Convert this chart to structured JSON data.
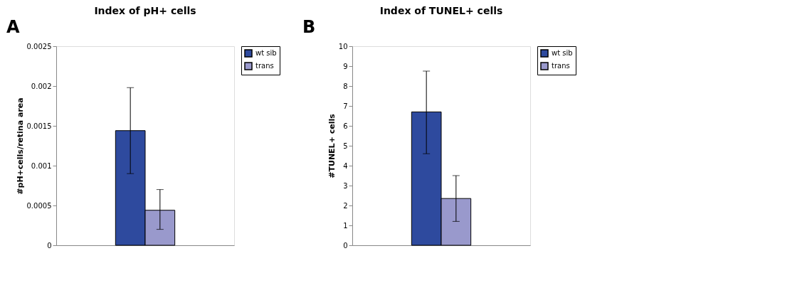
{
  "chart_data": [
    {
      "type": "bar",
      "title": "Index of pH+ cells",
      "ylabel": "#pH+cells/retina area",
      "annotations": [
        "A"
      ],
      "categories": [
        null
      ],
      "ylim": [
        0,
        0.0025
      ],
      "yticks": [
        0,
        0.0005,
        0.001,
        0.0015,
        0.002,
        0.0025
      ],
      "legend": "right",
      "tick_labels": "y",
      "grid": false,
      "series": [
        {
          "name": "wt sib",
          "color": "#2e4a9e",
          "values": [
            0.00144
          ],
          "errors": [
            [
              0.0009,
              0.00198
            ]
          ]
        },
        {
          "name": "trans",
          "color": "#9999cc",
          "values": [
            0.00044
          ],
          "errors": [
            [
              0.0002,
              0.0007
            ]
          ]
        }
      ]
    },
    {
      "type": "bar",
      "title": "Index of TUNEL+ cells",
      "ylabel": "#TUNEL+ cells",
      "annotations": [
        "B"
      ],
      "categories": [
        null
      ],
      "ylim": [
        0,
        10
      ],
      "yticks": [
        0,
        1,
        2,
        3,
        4,
        5,
        6,
        7,
        8,
        9,
        10
      ],
      "legend": "right",
      "tick_labels": "y",
      "grid": false,
      "series": [
        {
          "name": "wt sib",
          "color": "#2e4a9e",
          "values": [
            6.7
          ],
          "errors": [
            [
              4.6,
              8.75
            ]
          ]
        },
        {
          "name": "trans",
          "color": "#9999cc",
          "values": [
            2.35
          ],
          "errors": [
            [
              1.2,
              3.5
            ]
          ]
        }
      ]
    }
  ]
}
